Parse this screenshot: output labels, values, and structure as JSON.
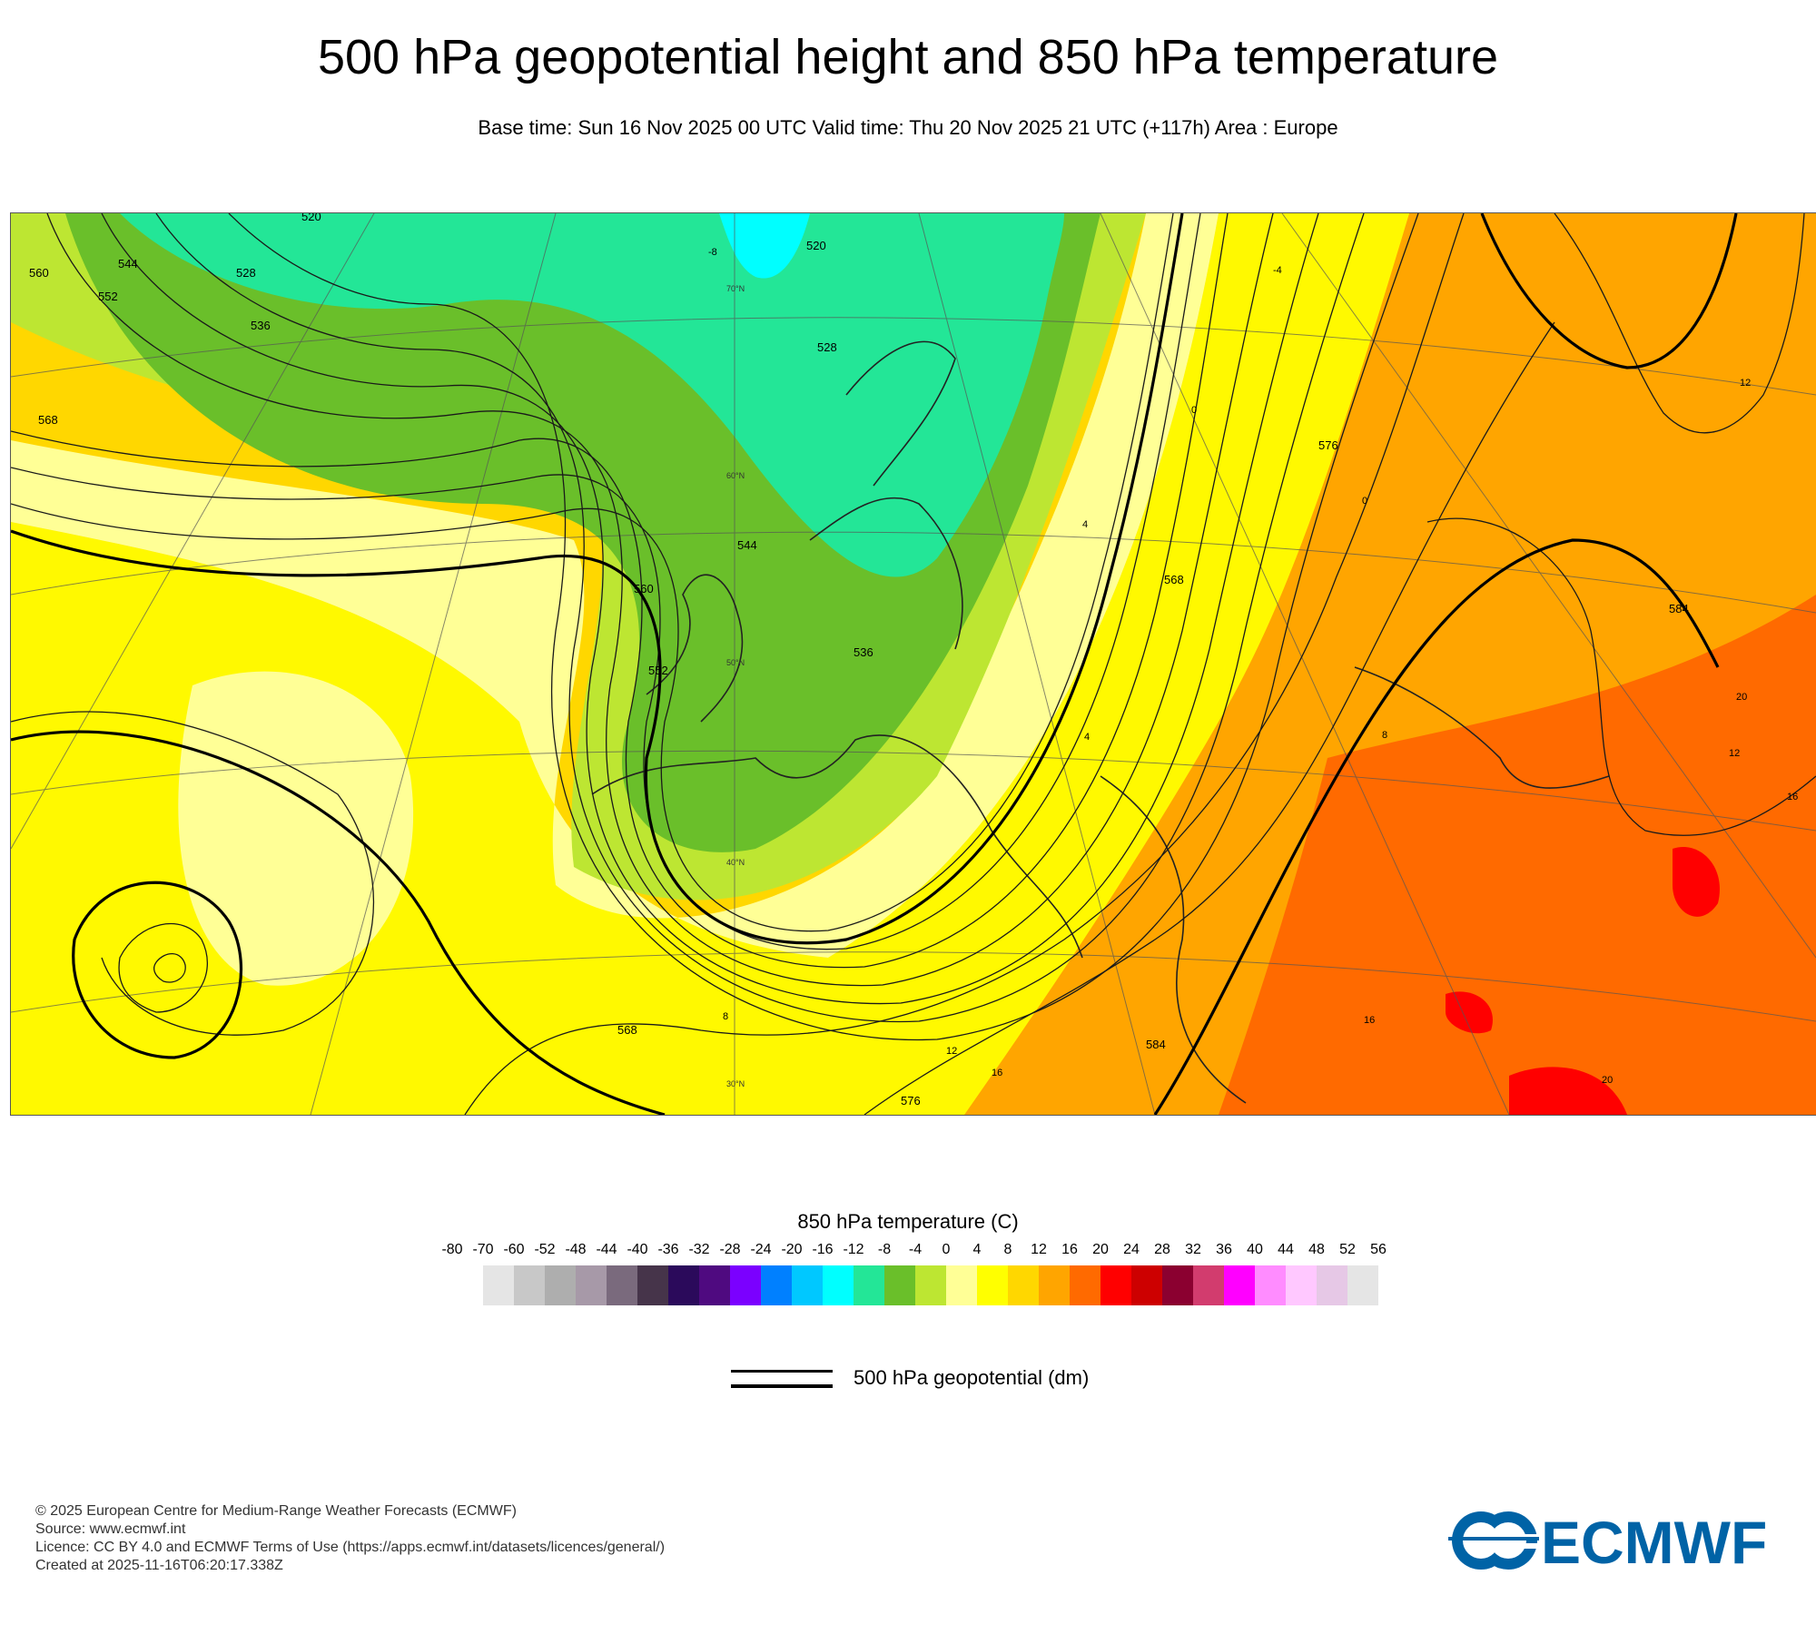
{
  "title": "500 hPa geopotential height and 850 hPa temperature",
  "subtitle": "Base time: Sun 16 Nov 2025 00 UTC Valid time: Thu 20 Nov 2025 21 UTC (+117h) Area : Europe",
  "map": {
    "area": "Europe",
    "contour_labels": [
      "520",
      "528",
      "536",
      "544",
      "552",
      "560",
      "568",
      "576",
      "584",
      "568",
      "576",
      "584",
      "544",
      "552",
      "560",
      "568",
      "536",
      "528",
      "520"
    ],
    "isotherm_labels": [
      "-8",
      "-4",
      "0",
      "4",
      "8",
      "12",
      "16",
      "20",
      "12",
      "16",
      "0",
      "4",
      "8",
      "12",
      "16",
      "20"
    ],
    "latitude_labels": [
      "70°N",
      "60°N",
      "50°N",
      "40°N",
      "30°N"
    ]
  },
  "colorbar": {
    "title": "850 hPa temperature (C)",
    "tick_labels": [
      "-80",
      "-70",
      "-60",
      "-52",
      "-48",
      "-44",
      "-40",
      "-36",
      "-32",
      "-28",
      "-24",
      "-20",
      "-16",
      "-12",
      "-8",
      "-4",
      "0",
      "4",
      "8",
      "12",
      "16",
      "20",
      "24",
      "28",
      "32",
      "36",
      "40",
      "44",
      "48",
      "52",
      "56"
    ],
    "colors": [
      "#e5e5e5",
      "#c8c8c8",
      "#aeaeae",
      "#a799a8",
      "#7a6a7d",
      "#46344a",
      "#2b0a5b",
      "#4f0a80",
      "#7b00ff",
      "#0080ff",
      "#00c8ff",
      "#00ffff",
      "#23e697",
      "#6abf2a",
      "#bde632",
      "#ffff96",
      "#ffff00",
      "#ffd700",
      "#ffa500",
      "#ff6a00",
      "#ff0000",
      "#cd0000",
      "#8b0030",
      "#d23c6e",
      "#ff00ff",
      "#ff8cff",
      "#ffc8ff",
      "#e6c8e6",
      "#e5e5e5"
    ]
  },
  "legend": {
    "label": "500 hPa geopotential (dm)"
  },
  "footer": {
    "line1": "© 2025 European Centre for Medium-Range Weather Forecasts (ECMWF)",
    "line2": "Source: www.ecmwf.int",
    "line3": "Licence: CC BY 4.0 and ECMWF Terms of Use (https://apps.ecmwf.int/datasets/licences/general/)",
    "line4": "Created at 2025-11-16T06:20:17.338Z"
  },
  "logo": {
    "text": "ECMWF",
    "color": "#0063a6"
  }
}
